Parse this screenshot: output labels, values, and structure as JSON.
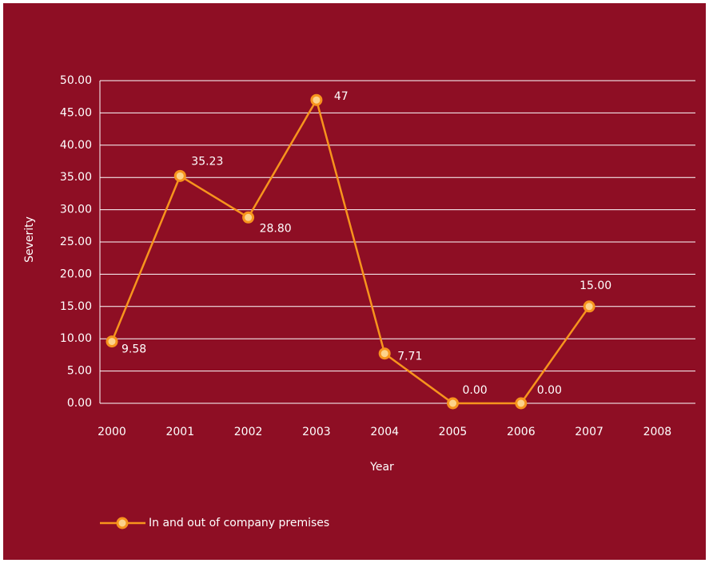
{
  "chart_data": {
    "type": "line",
    "x_label": "Year",
    "y_label": "Severity",
    "categories": [
      "2000",
      "2001",
      "2002",
      "2003",
      "2004",
      "2005",
      "2006",
      "2007",
      "2008"
    ],
    "series": [
      {
        "name": "In and out of company premises",
        "color": "#f7941d",
        "values": [
          9.58,
          35.23,
          28.8,
          47,
          7.71,
          0,
          0,
          15,
          null
        ],
        "value_labels": [
          "9.58",
          "35.23",
          "28.80",
          "47",
          "7.71",
          "0.00",
          "0.00",
          "15.00",
          null
        ]
      }
    ],
    "ylim": [
      0,
      50
    ],
    "yticks": [
      {
        "value": 0,
        "label": "0.00"
      },
      {
        "value": 5,
        "label": "5.00"
      },
      {
        "value": 10,
        "label": "10.00"
      },
      {
        "value": 15,
        "label": "15.00"
      },
      {
        "value": 20,
        "label": "20.00"
      },
      {
        "value": 25,
        "label": "25.00"
      },
      {
        "value": 30,
        "label": "30.00"
      },
      {
        "value": 35,
        "label": "35.00"
      },
      {
        "value": 40,
        "label": "40.00"
      },
      {
        "value": 45,
        "label": "45.00"
      },
      {
        "value": 50,
        "label": "50.00"
      }
    ],
    "grid": true,
    "legend": "bottom-left"
  }
}
